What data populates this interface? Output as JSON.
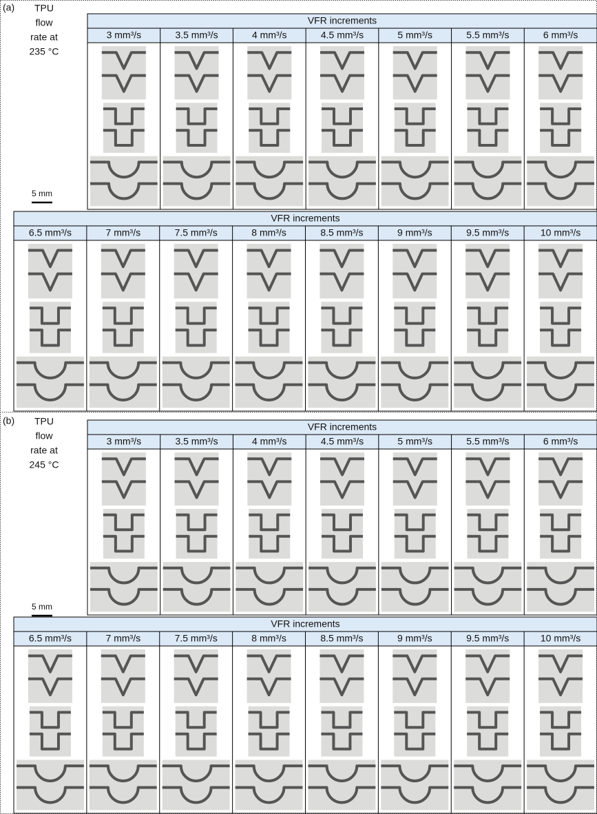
{
  "panels": [
    {
      "label": "(a)",
      "caption": [
        "TPU",
        "flow",
        "rate at",
        "235 °C"
      ],
      "scale_bar": "5 mm",
      "tables": [
        {
          "title": "VFR increments",
          "columns": [
            "3 mm³/s",
            "3.5 mm³/s",
            "4 mm³/s",
            "4.5 mm³/s",
            "5 mm³/s",
            "5.5 mm³/s",
            "6 mm³/s"
          ]
        },
        {
          "title": "VFR increments",
          "columns": [
            "6.5 mm³/s",
            "7 mm³/s",
            "7.5 mm³/s",
            "8 mm³/s",
            "8.5 mm³/s",
            "9 mm³/s",
            "9.5 mm³/s",
            "10 mm³/s"
          ]
        }
      ]
    },
    {
      "label": "(b)",
      "caption": [
        "TPU",
        "flow",
        "rate at",
        "245 °C"
      ],
      "scale_bar": "5 mm",
      "tables": [
        {
          "title": "VFR increments",
          "columns": [
            "3 mm³/s",
            "3.5 mm³/s",
            "4 mm³/s",
            "4.5 mm³/s",
            "5 mm³/s",
            "5.5 mm³/s",
            "6 mm³/s"
          ]
        },
        {
          "title": "VFR increments",
          "columns": [
            "6.5 mm³/s",
            "7 mm³/s",
            "7.5 mm³/s",
            "8 mm³/s",
            "8.5 mm³/s",
            "9 mm³/s",
            "9.5 mm³/s",
            "10 mm³/s"
          ]
        }
      ]
    }
  ]
}
